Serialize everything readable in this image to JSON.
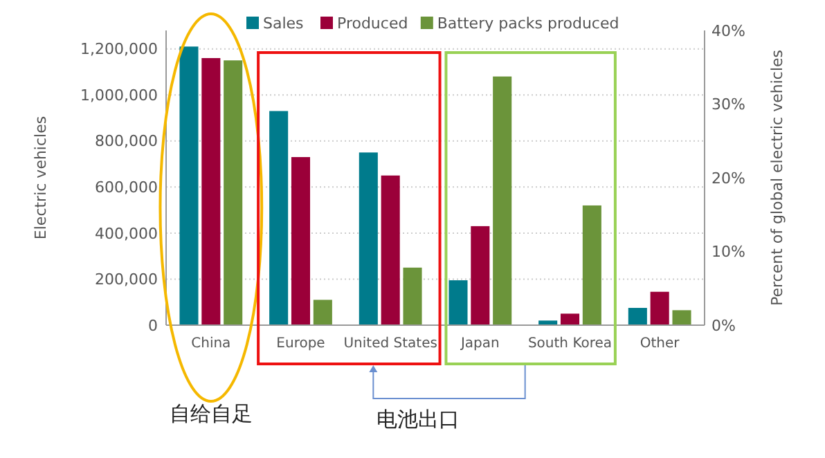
{
  "chart_data": {
    "type": "bar",
    "ylabel": "Electric vehicles",
    "y2label": "Percent of global electric vehicles",
    "categories": [
      "China",
      "Europe",
      "United States",
      "Japan",
      "South Korea",
      "Other"
    ],
    "series": [
      {
        "name": "Sales",
        "color": "#007b8c",
        "values": [
          1210000,
          930000,
          750000,
          195000,
          20000,
          75000
        ]
      },
      {
        "name": "Produced",
        "color": "#9b0039",
        "values": [
          1160000,
          730000,
          650000,
          430000,
          50000,
          145000
        ]
      },
      {
        "name": "Battery packs produced",
        "color": "#6b943a",
        "values": [
          1150000,
          110000,
          250000,
          1080000,
          520000,
          65000
        ]
      }
    ],
    "ylim": [
      0,
      1280000
    ],
    "yticks": [
      {
        "value": 0,
        "label": "0"
      },
      {
        "value": 200000,
        "label": "200,000"
      },
      {
        "value": 400000,
        "label": "400,000"
      },
      {
        "value": 600000,
        "label": "600,000"
      },
      {
        "value": 800000,
        "label": "800,000"
      },
      {
        "value": 1000000,
        "label": "1,000,000"
      },
      {
        "value": 1200000,
        "label": "1,200,000"
      }
    ],
    "y2lim": [
      0,
      40
    ],
    "y2ticks": [
      {
        "value": 0,
        "label": "0%"
      },
      {
        "value": 10,
        "label": "10%"
      },
      {
        "value": 20,
        "label": "20%"
      },
      {
        "value": 30,
        "label": "30%"
      },
      {
        "value": 40,
        "label": "40%"
      }
    ],
    "grid": "y",
    "legend": "top",
    "annotations": [
      "自给自足",
      "电池出口"
    ]
  }
}
